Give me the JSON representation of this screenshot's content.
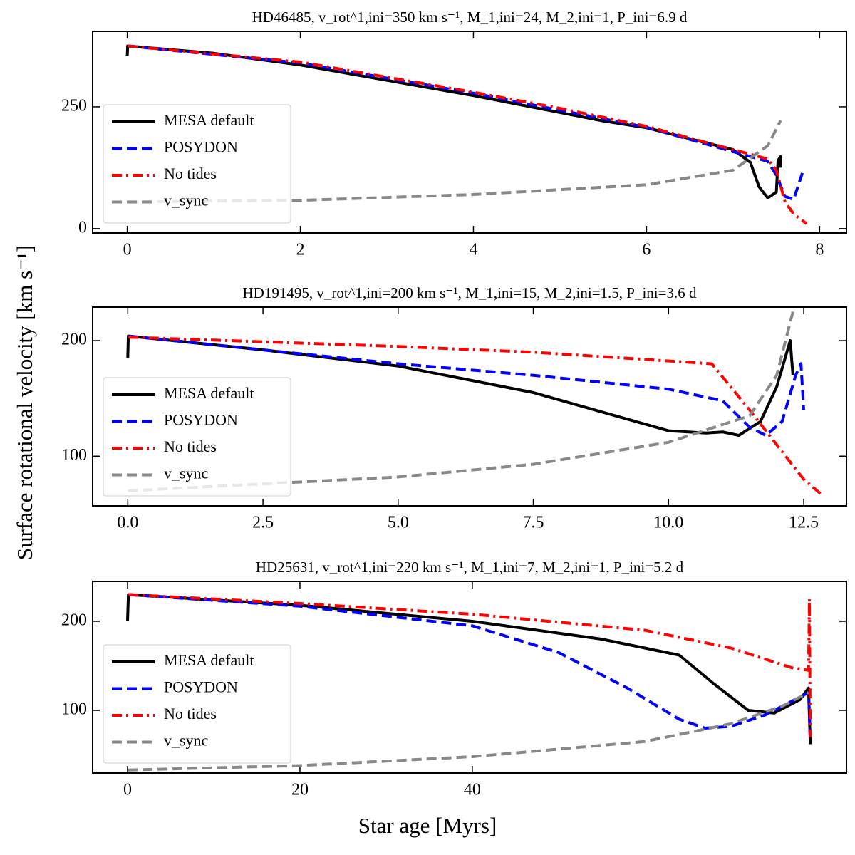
{
  "figure": {
    "xlabel": "Star age [Myrs]",
    "ylabel": "Surface rotational velocity [km s⁻¹]"
  },
  "chart_data": [
    {
      "type": "line",
      "title": "HD46485, v_rot^1,ini=350 km s⁻¹, M_1,ini=24, M_2,ini=1, P_ini=6.9 d",
      "xlim": [
        -0.4,
        8.31
      ],
      "xticks": [
        0,
        2,
        4,
        6,
        8
      ],
      "ylim": [
        -9,
        405
      ],
      "yticks": [
        0,
        250
      ],
      "legend": "lower left",
      "series": [
        {
          "name": "MESA default",
          "color": "#000000",
          "style": "solid",
          "x": [
            0,
            0.005,
            1,
            2,
            4,
            5.5,
            6,
            7,
            7.2,
            7.3,
            7.4,
            7.5,
            7.52,
            7.55,
            7.55
          ],
          "values": [
            355,
            375,
            360,
            336,
            273,
            221,
            207,
            162,
            136,
            86,
            63,
            75,
            140,
            148,
            125
          ]
        },
        {
          "name": "POSYDON",
          "color": "#0000ff",
          "style": "dashed",
          "x": [
            0.005,
            2,
            4,
            6,
            7.4,
            7.5,
            7.6,
            7.7,
            7.8
          ],
          "values": [
            375,
            340,
            278,
            208,
            138,
            110,
            66,
            60,
            114
          ]
        },
        {
          "name": "No tides",
          "color": "#ff0000",
          "style": "dashdot",
          "x": [
            0.005,
            2,
            4,
            5,
            6,
            7.4,
            7.5,
            7.6,
            7.7,
            7.85
          ],
          "values": [
            375,
            342,
            280,
            247,
            210,
            143,
            120,
            55,
            30,
            10
          ]
        },
        {
          "name": "v_sync",
          "color": "#888888",
          "style": "dashed",
          "x": [
            0,
            2,
            4,
            6,
            7,
            7.4,
            7.55
          ],
          "values": [
            55,
            58,
            70,
            90,
            120,
            170,
            222
          ]
        }
      ]
    },
    {
      "type": "line",
      "title": "HD191495, v_rot^1,ini=200 km s⁻¹, M_1,ini=15, M_2,ini=1.5, P_ini=3.6 d",
      "xlim": [
        -0.65,
        13.29
      ],
      "xticks": [
        {
          "value": 0,
          "label": "0.0"
        },
        2.5,
        {
          "value": 5,
          "label": "5.0"
        },
        7.5,
        {
          "value": 10,
          "label": "10.0"
        },
        12.5
      ],
      "ylim": [
        57,
        229
      ],
      "yticks": [
        100,
        200
      ],
      "legend": "lower left",
      "series": [
        {
          "name": "MESA default",
          "color": "#000000",
          "style": "solid",
          "x": [
            0,
            0.01,
            2.5,
            5,
            7.5,
            10,
            10.7,
            11,
            11.3,
            11.7,
            12,
            12.25,
            12.3
          ],
          "values": [
            185,
            204,
            192,
            178,
            155,
            122,
            120,
            121,
            118,
            130,
            160,
            200,
            170
          ]
        },
        {
          "name": "POSYDON",
          "color": "#0000ff",
          "style": "dashed",
          "x": [
            0.01,
            5,
            7.5,
            10,
            11,
            11.5,
            11.8,
            12.1,
            12.35,
            12.45,
            12.5
          ],
          "values": [
            204,
            180,
            170,
            158,
            148,
            125,
            118,
            130,
            170,
            180,
            140
          ]
        },
        {
          "name": "No tides",
          "color": "#ff0000",
          "style": "dashdot",
          "x": [
            0.01,
            5,
            7.5,
            10.8,
            11.5,
            12.5,
            12.85
          ],
          "values": [
            203,
            195,
            190,
            180,
            140,
            80,
            66
          ]
        },
        {
          "name": "v_sync",
          "color": "#888888",
          "style": "dashed",
          "x": [
            0,
            5,
            7.5,
            10,
            11.5,
            12,
            12.3
          ],
          "values": [
            70,
            82,
            93,
            112,
            135,
            170,
            225
          ]
        }
      ]
    },
    {
      "type": "line",
      "title": "HD25631, v_rot^1,ini=220 km s⁻¹, M_1,ini=7, M_2,ini=1, P_ini=5.2 d",
      "xlim": [
        -4.05,
        83.4
      ],
      "xticks": [
        0,
        20,
        40
      ],
      "ylim": [
        29.6,
        244.8
      ],
      "yticks": [
        100,
        200
      ],
      "legend": "lower left",
      "series": [
        {
          "name": "MESA default",
          "color": "#000000",
          "style": "solid",
          "x": [
            0,
            0.1,
            20,
            40,
            55,
            64,
            68,
            72,
            75,
            78,
            79,
            79.2
          ],
          "values": [
            200,
            230,
            218,
            200,
            180,
            162,
            130,
            100,
            97,
            112,
            125,
            62
          ]
        },
        {
          "name": "POSYDON",
          "color": "#0000ff",
          "style": "dashed",
          "x": [
            0.1,
            20,
            40,
            50,
            58,
            64,
            67,
            70,
            74,
            78,
            79,
            79.2
          ],
          "values": [
            230,
            217,
            195,
            165,
            125,
            90,
            80,
            82,
            95,
            115,
            120,
            70
          ]
        },
        {
          "name": "No tides",
          "color": "#ff0000",
          "style": "dashdot",
          "x": [
            0.1,
            20,
            40,
            60,
            70,
            77,
            79,
            79.1,
            79.2
          ],
          "values": [
            230,
            220,
            208,
            190,
            170,
            148,
            145,
            225,
            70
          ]
        },
        {
          "name": "v_sync",
          "color": "#888888",
          "style": "dashed",
          "x": [
            0,
            20,
            40,
            60,
            70,
            76,
            79
          ],
          "values": [
            33,
            38,
            48,
            65,
            85,
            105,
            120
          ]
        }
      ]
    }
  ]
}
